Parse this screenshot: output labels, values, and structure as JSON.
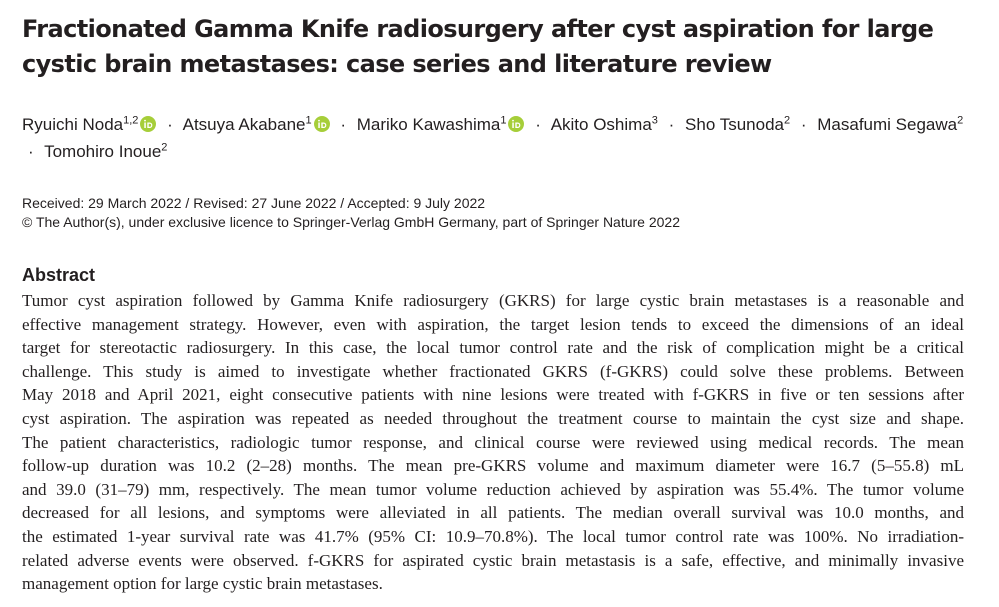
{
  "header": {
    "title_lines": [
      "Fractionated Gamma Knife radiosurgery after cyst aspiration for large",
      "cystic brain metastases: case series and literature review"
    ]
  },
  "authors": {
    "separator": "·",
    "list": [
      {
        "name": "Ryuichi Noda",
        "affiliation": "1,2",
        "orcid": true
      },
      {
        "name": "Atsuya Akabane",
        "affiliation": "1",
        "orcid": true
      },
      {
        "name": "Mariko Kawashima",
        "affiliation": "1",
        "orcid": true
      },
      {
        "name": "Akito Oshima",
        "affiliation": "3",
        "orcid": false
      },
      {
        "name": "Sho Tsunoda",
        "affiliation": "2",
        "orcid": false
      },
      {
        "name": "Masafumi Segawa",
        "affiliation": "2",
        "orcid": false
      },
      {
        "name": "Tomohiro Inoue",
        "affiliation": "2",
        "orcid": false
      }
    ]
  },
  "dates": "Received: 29 March 2022 / Revised: 27 June 2022 / Accepted: 9 July 2022",
  "copyright": "© The Author(s), under exclusive licence to Springer-Verlag GmbH Germany, part of Springer Nature 2022",
  "abstract": {
    "heading": "Abstract",
    "lines": [
      "Tumor cyst aspiration followed by Gamma Knife radiosurgery (GKRS) for large cystic brain metastases is a reasonable and",
      "effective management strategy. However, even with aspiration, the target lesion tends to exceed the dimensions of an ideal",
      "target for stereotactic radiosurgery. In this case, the local tumor control rate and the risk of complication might be a critical",
      "challenge. This study is aimed to investigate whether fractionated GKRS (f-GKRS) could solve these problems. Between",
      "May 2018 and April 2021, eight consecutive patients with nine lesions were treated with f-GKRS in five or ten sessions after",
      "cyst aspiration. The aspiration was repeated as needed throughout the treatment course to maintain the cyst size and shape.",
      "The patient characteristics, radiologic tumor response, and clinical course were reviewed using medical records. The mean",
      "follow-up duration was 10.2 (2–28) months. The mean pre-GKRS volume and maximum diameter were 16.7 (5–55.8) mL",
      "and 39.0 (31–79) mm, respectively. The mean tumor volume reduction achieved by aspiration was 55.4%. The tumor volume",
      "decreased for all lesions, and symptoms were alleviated in all patients. The median overall survival was 10.0 months, and",
      "the estimated 1-year survival rate was 41.7% (95% CI: 10.9–70.8%). The local tumor control rate was 100%. No irradiation-",
      "related adverse events were observed. f-GKRS for aspirated cystic brain metastasis is a safe, effective, and minimally invasive",
      "management option for large cystic brain metastases."
    ]
  }
}
